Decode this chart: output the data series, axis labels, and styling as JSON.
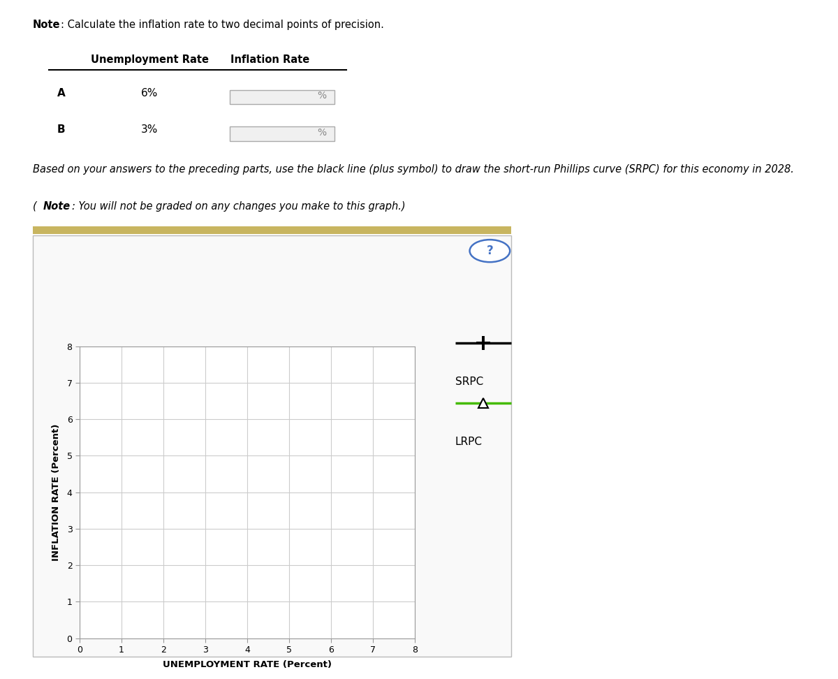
{
  "note_bold": "Note",
  "note_rest": ": Calculate the inflation rate to two decimal points of precision.",
  "table_headers": [
    "Unemployment Rate",
    "Inflation Rate"
  ],
  "table_rows": [
    {
      "label": "A",
      "unemp": "6%",
      "infl": "%"
    },
    {
      "label": "B",
      "unemp": "3%",
      "infl": "%"
    }
  ],
  "paragraph1_italic": "Based on your answers to the preceding parts, use the black line (plus symbol) to draw the short-run Phillips curve (SRPC) for this economy in 2028.",
  "paragraph2_bold": "Note",
  "paragraph2_rest": ": You will not be graded on any changes you make to this graph.)",
  "paragraph2_open": "(",
  "xlabel": "UNEMPLOYMENT RATE (Percent)",
  "ylabel": "INFLATION RATE (Percent)",
  "xlim": [
    0,
    8
  ],
  "ylim": [
    0,
    8
  ],
  "xticks": [
    0,
    1,
    2,
    3,
    4,
    5,
    6,
    7,
    8
  ],
  "yticks": [
    0,
    1,
    2,
    3,
    4,
    5,
    6,
    7,
    8
  ],
  "grid_color": "#cccccc",
  "plot_bg_color": "#ffffff",
  "outer_bg_color": "#f9f9f9",
  "srpc_legend_label": "SRPC",
  "lrpc_legend_label": "LRPC",
  "srpc_color": "#000000",
  "lrpc_color": "#44bb00",
  "divider_color": "#c8b560",
  "question_circle_color": "#4472c4"
}
